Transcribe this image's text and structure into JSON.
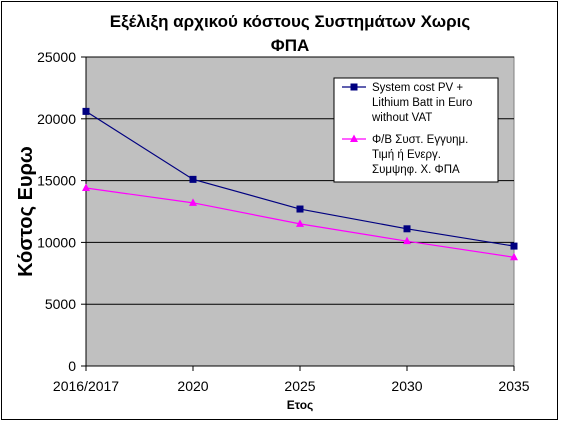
{
  "chart_data": {
    "type": "line",
    "title_line1": "Εξέλιξη αρχικού κόστους Συστημάτων Χωρις",
    "title_line2": "ΦΠΑ",
    "xlabel": "Ετος",
    "ylabel": "Κόστος Ευρω",
    "categories": [
      "2016/2017",
      "2020",
      "2025",
      "2030",
      "2035"
    ],
    "ylim": [
      0,
      25000
    ],
    "yticks": [
      0,
      5000,
      10000,
      15000,
      20000,
      25000
    ],
    "grid": true,
    "legend_position": "top-right",
    "series": [
      {
        "name_lines": [
          "System cost PV +",
          "Lithium Batt in Euro",
          "without VAT"
        ],
        "values": [
          20600,
          15100,
          12700,
          11100,
          9700
        ],
        "color": "#000080",
        "marker": "square"
      },
      {
        "name_lines": [
          "Φ/Β Συστ. Εγγυημ.",
          "Τιμή ή Ενεργ.",
          "Συμψηφ. Χ. ΦΠΑ"
        ],
        "values": [
          14400,
          13200,
          11500,
          10100,
          8800
        ],
        "color": "#FF00FF",
        "marker": "triangle"
      }
    ]
  }
}
